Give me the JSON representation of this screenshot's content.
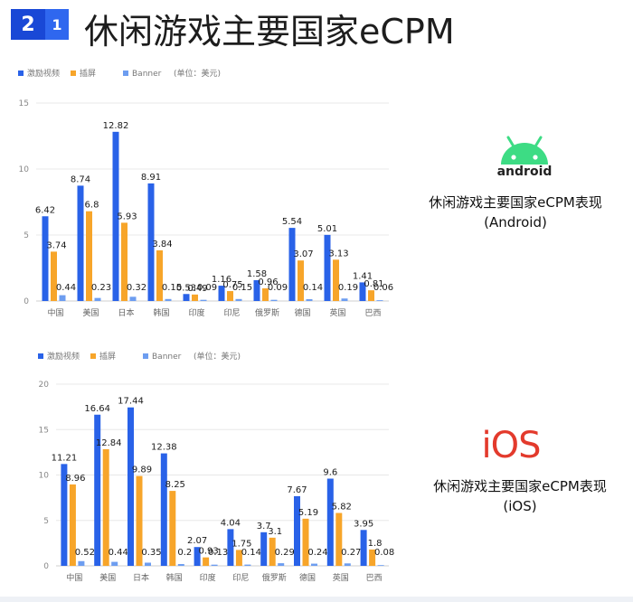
{
  "header": {
    "badge_main": "2",
    "badge_sub": "1",
    "title": "休闲游戏主要国家eCPM"
  },
  "colors": {
    "reward": "#2962e8",
    "interstitial": "#f7a52a",
    "banner": "#6d9df0"
  },
  "android": {
    "logo_text": "android",
    "label_line1": "休闲游戏主要国家eCPM表现",
    "label_line2": "(Android)"
  },
  "ios": {
    "logo_text": "iOS",
    "label_line1": "休闲游戏主要国家eCPM表现",
    "label_line2": "(iOS)"
  },
  "chart_data": [
    {
      "type": "bar",
      "legend": [
        "激励视频",
        "插屏",
        "Banner"
      ],
      "unit_note": "(单位：美元)",
      "ylim": [
        0,
        15
      ],
      "yticks": [
        0,
        5,
        10,
        15
      ],
      "categories": [
        "中国",
        "美国",
        "日本",
        "韩国",
        "印度",
        "印尼",
        "俄罗斯",
        "德国",
        "英国",
        "巴西"
      ],
      "series": [
        {
          "name": "激励视频",
          "values": [
            6.42,
            8.74,
            12.82,
            8.91,
            0.53,
            1.16,
            1.58,
            5.54,
            5.01,
            1.41
          ]
        },
        {
          "name": "插屏",
          "values": [
            3.74,
            6.8,
            5.93,
            3.84,
            0.49,
            0.75,
            0.96,
            3.07,
            3.13,
            0.81
          ]
        },
        {
          "name": "Banner",
          "values": [
            0.44,
            0.23,
            0.32,
            0.15,
            0.09,
            0.15,
            0.09,
            0.14,
            0.19,
            0.06
          ]
        }
      ]
    },
    {
      "type": "bar",
      "legend": [
        "激励视频",
        "插屏",
        "Banner"
      ],
      "unit_note": "(单位：美元)",
      "ylim": [
        0,
        20
      ],
      "yticks": [
        0,
        5,
        10,
        15,
        20
      ],
      "categories": [
        "中国",
        "美国",
        "日本",
        "韩国",
        "印度",
        "印尼",
        "俄罗斯",
        "德国",
        "英国",
        "巴西"
      ],
      "series": [
        {
          "name": "激励视频",
          "values": [
            11.21,
            16.64,
            17.44,
            12.38,
            2.07,
            4.04,
            3.7,
            7.67,
            9.6,
            3.95
          ]
        },
        {
          "name": "插屏",
          "values": [
            8.96,
            12.84,
            9.89,
            8.25,
            0.93,
            1.75,
            3.1,
            5.19,
            5.82,
            1.8
          ]
        },
        {
          "name": "Banner",
          "values": [
            0.52,
            0.44,
            0.35,
            0.2,
            0.13,
            0.14,
            0.29,
            0.24,
            0.27,
            0.08
          ]
        }
      ]
    }
  ]
}
